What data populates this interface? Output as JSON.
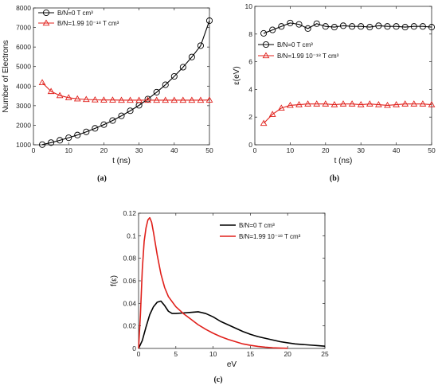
{
  "chart_data": [
    {
      "type": "line",
      "panel_label": "(a)",
      "xlabel": "t (ns)",
      "ylabel": "Number of Electrons",
      "xlim": [
        0,
        50
      ],
      "ylim": [
        1000,
        8000
      ],
      "xticks": [
        0,
        10,
        20,
        30,
        40,
        50
      ],
      "xtick_labels": [
        "0",
        "10",
        "20",
        "30",
        "40",
        "50"
      ],
      "yticks": [
        1000,
        2000,
        3000,
        4000,
        5000,
        6000,
        7000,
        8000
      ],
      "ytick_labels": [
        "1000",
        "2000",
        "3000",
        "4000",
        "5000",
        "6000",
        "7000",
        "8000"
      ],
      "legend_position": "top-left",
      "series": [
        {
          "name": "B/N=0 T cm³",
          "color": "#000000",
          "marker": "circle",
          "x": [
            2.5,
            5,
            7.5,
            10,
            12.5,
            15,
            17.5,
            20,
            22.5,
            25,
            27.5,
            30,
            32.5,
            35,
            37.5,
            40,
            42.5,
            45,
            47.5,
            50
          ],
          "y": [
            1010,
            1110,
            1230,
            1360,
            1500,
            1660,
            1840,
            2030,
            2240,
            2480,
            2740,
            3020,
            3340,
            3690,
            4070,
            4500,
            4970,
            5490,
            6070,
            7350
          ]
        },
        {
          "name": "B/N=1.99 10⁻¹⁸ T cm³",
          "color": "#e0201b",
          "marker": "triangle",
          "x": [
            2.5,
            5,
            7.5,
            10,
            12.5,
            15,
            17.5,
            20,
            22.5,
            25,
            27.5,
            30,
            32.5,
            35,
            37.5,
            40,
            42.5,
            45,
            47.5,
            50
          ],
          "y": [
            4180,
            3730,
            3520,
            3410,
            3350,
            3320,
            3300,
            3290,
            3290,
            3280,
            3280,
            3280,
            3280,
            3280,
            3280,
            3280,
            3280,
            3280,
            3280,
            3290
          ]
        }
      ]
    },
    {
      "type": "line",
      "panel_label": "(b)",
      "xlabel": "t (ns)",
      "ylabel": "ε(eV)",
      "xlim": [
        0,
        50
      ],
      "ylim": [
        0,
        10
      ],
      "xticks": [
        0,
        10,
        20,
        30,
        40,
        50
      ],
      "xtick_labels": [
        "0",
        "10",
        "20",
        "30",
        "40",
        "50"
      ],
      "yticks": [
        0,
        2,
        4,
        6,
        8,
        10
      ],
      "ytick_labels": [
        "0",
        "2",
        "4",
        "6",
        "8",
        "10"
      ],
      "legend_position": "middle-left",
      "series": [
        {
          "name": "B/N=0 T cm³",
          "color": "#000000",
          "marker": "circle",
          "x": [
            2.5,
            5,
            7.5,
            10,
            12.5,
            15,
            17.5,
            20,
            22.5,
            25,
            27.5,
            30,
            32.5,
            35,
            37.5,
            40,
            42.5,
            45,
            47.5,
            50
          ],
          "y": [
            8.05,
            8.3,
            8.55,
            8.8,
            8.7,
            8.4,
            8.75,
            8.55,
            8.5,
            8.6,
            8.55,
            8.55,
            8.5,
            8.6,
            8.55,
            8.55,
            8.5,
            8.55,
            8.55,
            8.5
          ]
        },
        {
          "name": "B/N=1.99 10⁻¹⁸ T cm³",
          "color": "#e0201b",
          "marker": "triangle",
          "x": [
            2.5,
            5,
            7.5,
            10,
            12.5,
            15,
            17.5,
            20,
            22.5,
            25,
            27.5,
            30,
            32.5,
            35,
            37.5,
            40,
            42.5,
            45,
            47.5,
            50
          ],
          "y": [
            1.55,
            2.2,
            2.65,
            2.85,
            2.9,
            2.95,
            2.95,
            2.95,
            2.9,
            2.95,
            2.95,
            2.9,
            2.95,
            2.9,
            2.85,
            2.9,
            2.95,
            2.95,
            2.95,
            2.9
          ]
        }
      ]
    },
    {
      "type": "line",
      "panel_label": "(c)",
      "xlabel": "eV",
      "ylabel": "f(ε)",
      "xlim": [
        0,
        25
      ],
      "ylim": [
        0,
        0.12
      ],
      "xticks": [
        0,
        5,
        10,
        15,
        20,
        25
      ],
      "xtick_labels": [
        "0",
        "5",
        "10",
        "15",
        "20",
        "25"
      ],
      "yticks": [
        0,
        0.02,
        0.04,
        0.06,
        0.08,
        0.1,
        0.12
      ],
      "ytick_labels": [
        "0",
        "0.02",
        "0.04",
        "0.06",
        "0.08",
        "0.1",
        "0.12"
      ],
      "legend_position": "top-right",
      "series": [
        {
          "name": "B/N=0 T cm³",
          "color": "#000000",
          "marker": "none",
          "x": [
            0,
            0.5,
            1,
            1.5,
            2,
            2.5,
            3,
            3.5,
            4,
            4.5,
            5,
            6,
            7,
            8,
            9,
            10,
            11,
            12,
            13,
            14,
            15,
            16,
            17,
            18,
            19,
            20,
            21,
            22,
            23,
            24,
            25
          ],
          "y": [
            0.0,
            0.007,
            0.019,
            0.03,
            0.037,
            0.041,
            0.042,
            0.038,
            0.033,
            0.031,
            0.031,
            0.0315,
            0.032,
            0.0325,
            0.031,
            0.028,
            0.024,
            0.021,
            0.018,
            0.015,
            0.0125,
            0.0105,
            0.009,
            0.0075,
            0.006,
            0.005,
            0.004,
            0.0035,
            0.003,
            0.0025,
            0.002
          ]
        },
        {
          "name": "B/N=1.99 10⁻¹⁸ T cm³",
          "color": "#e0201b",
          "marker": "none",
          "x": [
            0,
            0.25,
            0.5,
            0.75,
            1,
            1.25,
            1.5,
            1.75,
            2,
            2.5,
            3,
            3.5,
            4,
            5,
            6,
            7,
            8,
            9,
            10,
            11,
            12,
            13,
            14,
            15,
            16,
            17,
            18,
            19,
            20
          ],
          "y": [
            0.0,
            0.03,
            0.07,
            0.095,
            0.107,
            0.114,
            0.116,
            0.112,
            0.103,
            0.083,
            0.066,
            0.054,
            0.046,
            0.037,
            0.031,
            0.026,
            0.021,
            0.017,
            0.0135,
            0.0105,
            0.008,
            0.006,
            0.004,
            0.0028,
            0.0018,
            0.0011,
            0.0006,
            0.0003,
            0.0001
          ]
        }
      ]
    }
  ]
}
